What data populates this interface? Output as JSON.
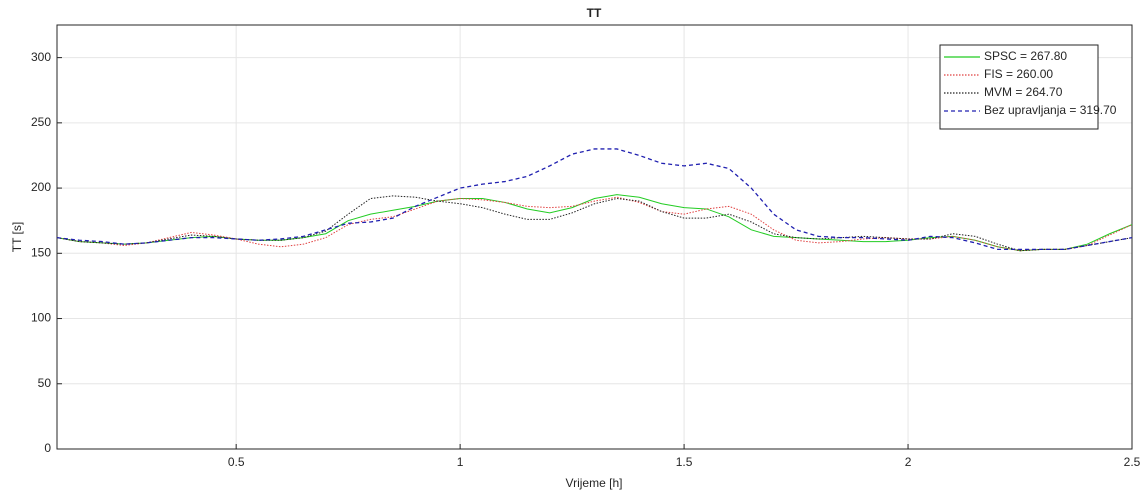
{
  "chart_data": {
    "type": "line",
    "title": "TT",
    "xlabel": "Vrijeme [h]",
    "ylabel": "TT [s]",
    "x": [
      0.1,
      0.15,
      0.2,
      0.25,
      0.3,
      0.35,
      0.4,
      0.45,
      0.5,
      0.55,
      0.6,
      0.65,
      0.7,
      0.75,
      0.8,
      0.85,
      0.9,
      0.95,
      1.0,
      1.05,
      1.1,
      1.15,
      1.2,
      1.25,
      1.3,
      1.35,
      1.4,
      1.45,
      1.5,
      1.55,
      1.6,
      1.65,
      1.7,
      1.75,
      1.8,
      1.85,
      1.9,
      1.95,
      2.0,
      2.05,
      2.1,
      2.15,
      2.2,
      2.25,
      2.3,
      2.35,
      2.4,
      2.45,
      2.5
    ],
    "series": [
      {
        "name": "SPSC = 267.80",
        "color": "#22cc22",
        "dash": "solid",
        "values": [
          162,
          159,
          158,
          157,
          158,
          160,
          162,
          163,
          161,
          160,
          160,
          162,
          165,
          175,
          180,
          183,
          186,
          190,
          192,
          192,
          189,
          184,
          181,
          185,
          192,
          195,
          193,
          188,
          185,
          184,
          178,
          168,
          163,
          162,
          161,
          160,
          159,
          159,
          160,
          162,
          163,
          160,
          155,
          152,
          153,
          153,
          157,
          165,
          172
        ]
      },
      {
        "name": "FIS = 260.00",
        "color": "#e04040",
        "dash": "dotted",
        "values": [
          162,
          159,
          158,
          156,
          158,
          162,
          166,
          164,
          161,
          157,
          155,
          157,
          162,
          172,
          176,
          178,
          184,
          190,
          192,
          191,
          189,
          186,
          185,
          186,
          190,
          193,
          189,
          182,
          180,
          184,
          186,
          180,
          168,
          160,
          158,
          159,
          161,
          162,
          161,
          161,
          163,
          160,
          155,
          152,
          153,
          153,
          156,
          164,
          172
        ]
      },
      {
        "name": "MVM = 264.70",
        "color": "#222222",
        "dash": "dotted",
        "values": [
          162,
          159,
          158,
          157,
          158,
          161,
          164,
          163,
          161,
          160,
          160,
          162,
          167,
          180,
          192,
          194,
          193,
          190,
          188,
          185,
          180,
          176,
          176,
          181,
          188,
          192,
          190,
          182,
          177,
          177,
          180,
          174,
          165,
          162,
          161,
          162,
          163,
          162,
          161,
          161,
          165,
          163,
          157,
          152,
          153,
          153,
          156,
          159,
          162
        ]
      },
      {
        "name": "Bez upravljanja = 319.70",
        "color": "#2020b0",
        "dash": "dashed",
        "values": [
          162,
          160,
          159,
          157,
          158,
          160,
          162,
          162,
          161,
          160,
          161,
          163,
          168,
          173,
          174,
          177,
          186,
          193,
          200,
          203,
          205,
          209,
          217,
          226,
          230,
          230,
          225,
          219,
          217,
          219,
          215,
          200,
          180,
          168,
          163,
          162,
          162,
          161,
          160,
          163,
          162,
          158,
          153,
          153,
          153,
          153,
          156,
          159,
          162
        ]
      }
    ],
    "xlim": [
      0.1,
      2.5
    ],
    "xticks": [
      0.5,
      1,
      1.5,
      2,
      2.5
    ],
    "ylim": [
      0,
      325
    ],
    "yticks": [
      0,
      50,
      100,
      150,
      200,
      250,
      300
    ],
    "grid": true,
    "legend": "top-right"
  }
}
